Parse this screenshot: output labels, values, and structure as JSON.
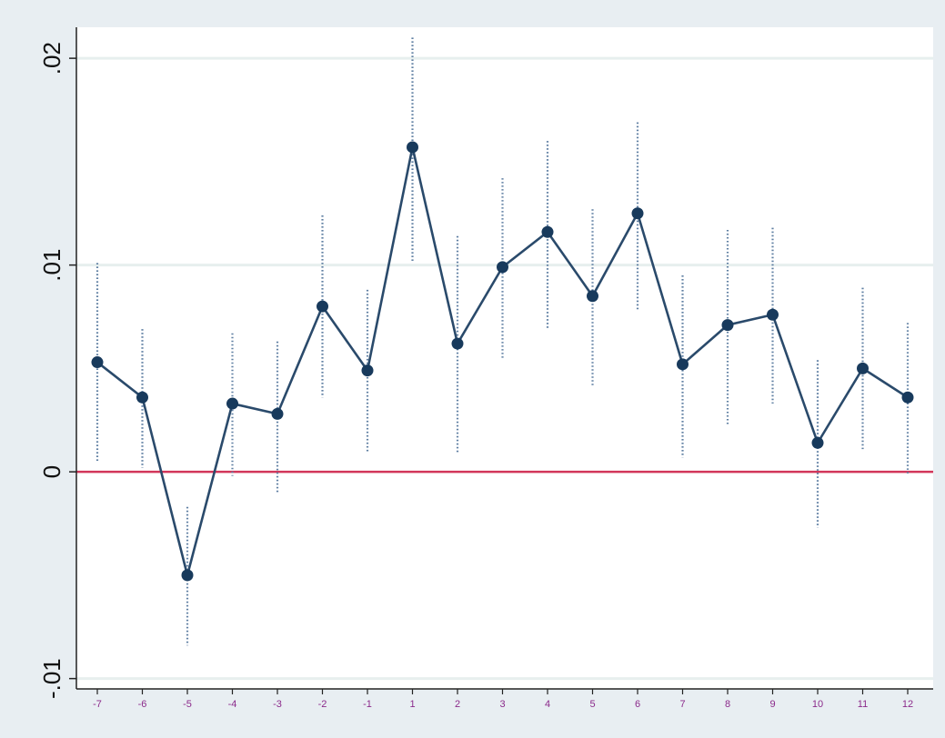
{
  "chart_data": {
    "type": "line",
    "title": "",
    "xlabel": "",
    "ylabel": "",
    "x_tick_labels": [
      "-7",
      "-6",
      "-5",
      "-4",
      "-3",
      "-2",
      "-1",
      "1",
      "2",
      "3",
      "4",
      "5",
      "6",
      "7",
      "8",
      "9",
      "10",
      "11",
      "12"
    ],
    "y_ticks": [
      -0.01,
      0,
      0.01,
      0.02
    ],
    "y_tick_labels": [
      "-.01",
      "0",
      ".01",
      ".02"
    ],
    "ylim": [
      -0.0105,
      0.0215
    ],
    "reference_line": 0,
    "grid": "horizontal",
    "legend": "none",
    "series": [
      {
        "values": [
          0.0053,
          0.0036,
          -0.005,
          0.0033,
          0.0028,
          0.008,
          0.0049,
          0.0157,
          0.0062,
          0.0099,
          0.0116,
          0.0085,
          0.0125,
          0.0052,
          0.0071,
          0.0076,
          0.0014,
          0.005,
          0.0036
        ],
        "ci_lower": [
          0.0005,
          0.0002,
          -0.0084,
          -0.0002,
          -0.001,
          0.0036,
          0.0009,
          0.0102,
          0.0009,
          0.0055,
          0.0069,
          0.0041,
          0.0078,
          0.0007,
          0.0023,
          0.0033,
          -0.0027,
          0.0011,
          -0.0001
        ],
        "ci_upper": [
          0.0101,
          0.0069,
          -0.0017,
          0.0067,
          0.0063,
          0.0124,
          0.0088,
          0.021,
          0.0114,
          0.0142,
          0.016,
          0.0127,
          0.0169,
          0.0095,
          0.0117,
          0.0118,
          0.0054,
          0.0089,
          0.0072
        ]
      }
    ],
    "colors": {
      "line": "#2a4a6b",
      "marker": "#183a5c",
      "ci": "#5f7fa2",
      "reference": "#d2365a",
      "grid": "#e7efee",
      "axis": "#222222"
    }
  }
}
